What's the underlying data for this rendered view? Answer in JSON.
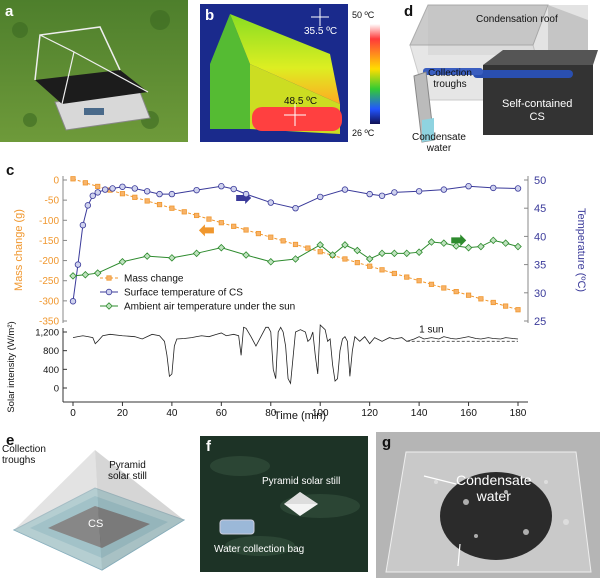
{
  "panels": {
    "a": {
      "label": "a"
    },
    "b": {
      "label": "b",
      "temp_top": "35.5 ºC",
      "temp_bottom": "48.5 ºC",
      "scale_max": "50 ºC",
      "scale_min": "26 ºC"
    },
    "d": {
      "label": "d",
      "roof": "Condensation roof",
      "troughs_line1": "Collection",
      "troughs_line2": "troughs",
      "cs_line1": "Self-contained",
      "cs_line2": "CS",
      "water_line1": "Condensate",
      "water_line2": "water"
    },
    "c": {
      "label": "c"
    },
    "e": {
      "label": "e",
      "troughs_line1": "Collection",
      "troughs_line2": "troughs",
      "still_line1": "Pyramid",
      "still_line2": "solar still",
      "cs": "CS"
    },
    "f": {
      "label": "f",
      "still": "Pyramid solar still",
      "bag": "Water collection bag"
    },
    "g": {
      "label": "g",
      "water_line1": "Condensate",
      "water_line2": "water"
    }
  },
  "chart_data": {
    "type": "line",
    "xlabel": "Time (min)",
    "xlim": [
      0,
      180
    ],
    "x_ticks": [
      0,
      20,
      40,
      60,
      80,
      100,
      120,
      140,
      160,
      180
    ],
    "ylabel_left": "Mass change (g)",
    "ylim_left": [
      -350,
      0
    ],
    "y_ticks_left": [
      0,
      -50,
      -100,
      -150,
      -200,
      -250,
      -300,
      -350
    ],
    "ylabel_right": "Temperature (ºC)",
    "ylim_right": [
      25,
      50
    ],
    "y_ticks_right": [
      25,
      30,
      35,
      40,
      45,
      50
    ],
    "series": [
      {
        "name": "Mass change",
        "axis": "left",
        "color": "#f0972e",
        "marker": "square",
        "x": [
          0,
          5,
          10,
          15,
          20,
          25,
          30,
          35,
          40,
          45,
          50,
          55,
          60,
          65,
          70,
          75,
          80,
          85,
          90,
          95,
          100,
          105,
          110,
          115,
          120,
          125,
          130,
          135,
          140,
          145,
          150,
          155,
          160,
          165,
          170,
          175,
          180
        ],
        "values": [
          3,
          -7,
          -16,
          -25,
          -34,
          -43,
          -52,
          -61,
          -70,
          -79,
          -88,
          -97,
          -106,
          -115,
          -124,
          -133,
          -142,
          -151,
          -160,
          -169,
          -178,
          -187,
          -196,
          -205,
          -214,
          -223,
          -232,
          -241,
          -250,
          -259,
          -268,
          -277,
          -286,
          -295,
          -304,
          -313,
          -322
        ]
      },
      {
        "name": "Surface temperature of CS",
        "axis": "right",
        "color": "#3a3a9a",
        "marker": "circle",
        "x": [
          0,
          2,
          4,
          6,
          8,
          10,
          13,
          16,
          20,
          25,
          30,
          35,
          40,
          50,
          60,
          65,
          70,
          80,
          90,
          100,
          110,
          120,
          125,
          130,
          140,
          150,
          160,
          170,
          180
        ],
        "values": [
          28.5,
          35,
          42,
          45.5,
          47.2,
          47.8,
          48.3,
          48.5,
          48.8,
          48.5,
          48,
          47.5,
          47.5,
          48.2,
          48.9,
          48.4,
          47.5,
          46,
          45,
          47,
          48.3,
          47.5,
          47.2,
          47.8,
          48,
          48.3,
          48.9,
          48.6,
          48.5
        ]
      },
      {
        "name": "Ambient air temperature under the sun",
        "axis": "right",
        "color": "#2e8b2e",
        "marker": "diamond",
        "x": [
          0,
          5,
          10,
          20,
          30,
          40,
          50,
          60,
          70,
          80,
          90,
          100,
          105,
          110,
          115,
          120,
          125,
          130,
          135,
          140,
          145,
          150,
          155,
          160,
          165,
          170,
          175,
          180
        ],
        "values": [
          33,
          33.2,
          33.5,
          35.5,
          36.5,
          36.2,
          37,
          38,
          36.7,
          35.5,
          36,
          38.5,
          36.7,
          38.5,
          37.5,
          36,
          37,
          37,
          37,
          37.2,
          39,
          38.8,
          38.3,
          38,
          38.2,
          39.3,
          38.8,
          38.2
        ]
      }
    ],
    "legend": "bottom-left",
    "solar": {
      "ylabel": "Solar intensity (W/m²)",
      "ylim": [
        0,
        1200
      ],
      "y_ticks": [
        0,
        400,
        800,
        1200
      ],
      "tick_labels": [
        "0",
        "400",
        "800",
        "1,200"
      ],
      "reference_label": "1 sun",
      "reference_value": 1000,
      "x": [
        0,
        2,
        4,
        6,
        8,
        9,
        10,
        12,
        15,
        20,
        25,
        28,
        30,
        32,
        35,
        37,
        38,
        39,
        40,
        41,
        42,
        45,
        48,
        50,
        52,
        55,
        58,
        60,
        62,
        65,
        67,
        68,
        69,
        70,
        72,
        74,
        76,
        78,
        79,
        80,
        81,
        82,
        83,
        84,
        85,
        86,
        87,
        88,
        90,
        92,
        94,
        95,
        96,
        97,
        98,
        99,
        100,
        101,
        102,
        103,
        104,
        105,
        106,
        107,
        108,
        109,
        110,
        111,
        112,
        113,
        114,
        116,
        118,
        120,
        122,
        125,
        128,
        130,
        133,
        135,
        138,
        140,
        142,
        145,
        148,
        150,
        153,
        155,
        158,
        160,
        163,
        165,
        168,
        170,
        173,
        175,
        178,
        180
      ],
      "values": [
        1080,
        1100,
        1120,
        1100,
        1080,
        950,
        1000,
        1120,
        1150,
        1120,
        1100,
        1050,
        1100,
        1150,
        1120,
        1000,
        700,
        250,
        300,
        900,
        1050,
        1060,
        1080,
        1100,
        1120,
        1100,
        1150,
        1180,
        1120,
        1150,
        1120,
        700,
        1300,
        1280,
        1100,
        900,
        1100,
        1300,
        1300,
        1200,
        400,
        200,
        1200,
        1300,
        1200,
        900,
        200,
        100,
        1200,
        1250,
        1200,
        1000,
        1050,
        1200,
        700,
        300,
        1350,
        1300,
        1250,
        1000,
        1050,
        500,
        150,
        200,
        800,
        1050,
        1100,
        1000,
        250,
        800,
        1100,
        1000,
        1100,
        950,
        1080,
        1000,
        1080,
        1050,
        1080,
        1000,
        1050,
        1100,
        1050,
        1080,
        1050,
        1100,
        1060,
        1050,
        1080,
        1100,
        1060,
        1050,
        1080,
        1060,
        1050,
        1080,
        1060,
        1050
      ]
    }
  }
}
